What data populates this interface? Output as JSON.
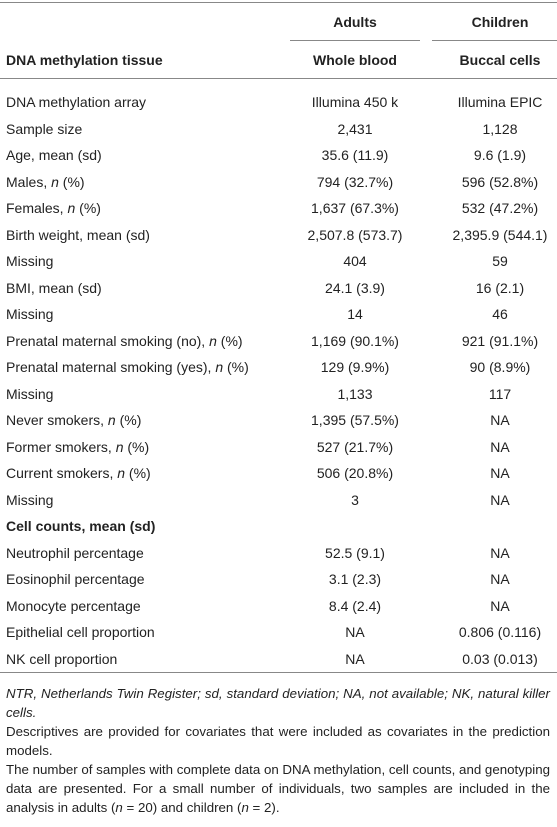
{
  "table": {
    "groups": [
      "Adults",
      "Children"
    ],
    "header": [
      "DNA methylation tissue",
      "Whole blood",
      "Buccal cells"
    ],
    "rows": [
      {
        "label": [
          "DNA methylation array"
        ],
        "cells": [
          "Illumina 450 k",
          "Illumina EPIC"
        ]
      },
      {
        "label": [
          "Sample size"
        ],
        "cells": [
          "2,431",
          "1,128"
        ]
      },
      {
        "label": [
          "Age, mean (sd)"
        ],
        "cells": [
          "35.6 (11.9)",
          "9.6 (1.9)"
        ]
      },
      {
        "label": [
          "Males, ",
          "n",
          " (%)"
        ],
        "cells": [
          "794 (32.7%)",
          "596 (52.8%)"
        ]
      },
      {
        "label": [
          "Females, ",
          "n",
          " (%)"
        ],
        "cells": [
          "1,637 (67.3%)",
          "532 (47.2%)"
        ]
      },
      {
        "label": [
          "Birth weight, mean (sd)"
        ],
        "cells": [
          "2,507.8 (573.7)",
          "2,395.9 (544.1)"
        ]
      },
      {
        "label": [
          "Missing"
        ],
        "cells": [
          "404",
          "59"
        ]
      },
      {
        "label": [
          "BMI, mean (sd)"
        ],
        "cells": [
          "24.1 (3.9)",
          "16 (2.1)"
        ]
      },
      {
        "label": [
          "Missing"
        ],
        "cells": [
          "14",
          "46"
        ]
      },
      {
        "label": [
          "Prenatal maternal smoking (no), ",
          "n",
          " (%)"
        ],
        "cells": [
          "1,169 (90.1%)",
          "921 (91.1%)"
        ]
      },
      {
        "label": [
          "Prenatal maternal smoking (yes), ",
          "n",
          " (%)"
        ],
        "cells": [
          "129 (9.9%)",
          "90 (8.9%)"
        ]
      },
      {
        "label": [
          "Missing"
        ],
        "cells": [
          "1,133",
          "117"
        ]
      },
      {
        "label": [
          "Never smokers, ",
          "n",
          " (%)"
        ],
        "cells": [
          "1,395 (57.5%)",
          "NA"
        ]
      },
      {
        "label": [
          "Former smokers, ",
          "n",
          " (%)"
        ],
        "cells": [
          "527 (21.7%)",
          "NA"
        ]
      },
      {
        "label": [
          "Current smokers, ",
          "n",
          " (%)"
        ],
        "cells": [
          "506 (20.8%)",
          "NA"
        ]
      },
      {
        "label": [
          "Missing"
        ],
        "cells": [
          "3",
          "NA"
        ]
      },
      {
        "label": [
          "Cell counts, mean (sd)"
        ],
        "cells": [],
        "bold": true
      },
      {
        "label": [
          "Neutrophil percentage"
        ],
        "cells": [
          "52.5 (9.1)",
          "NA"
        ]
      },
      {
        "label": [
          "Eosinophil percentage"
        ],
        "cells": [
          "3.1 (2.3)",
          "NA"
        ]
      },
      {
        "label": [
          "Monocyte percentage"
        ],
        "cells": [
          "8.4 (2.4)",
          "NA"
        ]
      },
      {
        "label": [
          "Epithelial cell proportion"
        ],
        "cells": [
          "NA",
          "0.806 (0.116)"
        ]
      },
      {
        "label": [
          "NK cell proportion"
        ],
        "cells": [
          "NA",
          "0.03 (0.013)"
        ]
      }
    ],
    "footnotes": [
      {
        "parts": [
          "NTR, Netherlands Twin Register; sd, standard deviation; NA, not available; NK, natural killer cells."
        ],
        "italic": true
      },
      {
        "parts": [
          "Descriptives are provided for covariates that were included as covariates in the prediction models."
        ]
      },
      {
        "parts": [
          "The number of samples with complete data on DNA methylation, cell counts, and genotyping data are presented. For a small number of individuals, two samples are included in the analysis in adults (",
          "n",
          " = 20) and children (",
          "n",
          " = 2)."
        ]
      }
    ]
  }
}
